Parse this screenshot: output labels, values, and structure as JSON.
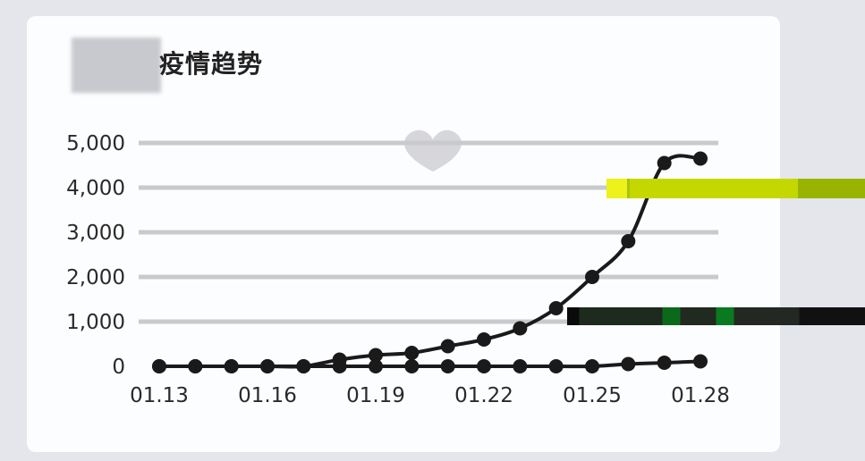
{
  "title": "疫情趋势",
  "colors": {
    "line": "#1a1a1a",
    "grid": "#c9cacd",
    "card": "#fcfdff",
    "background": "#e4e6ec"
  },
  "chart_data": {
    "type": "line",
    "title": "疫情趋势",
    "xlabel": "",
    "ylabel": "",
    "ylim": [
      0,
      5000
    ],
    "yticks": [
      "5,000",
      "4,000",
      "3,000",
      "2,000",
      "1,000",
      "0"
    ],
    "x": [
      "01.13",
      "01.14",
      "01.15",
      "01.16",
      "01.17",
      "01.18",
      "01.19",
      "01.20",
      "01.21",
      "01.22",
      "01.23",
      "01.24",
      "01.25",
      "01.26",
      "01.27",
      "01.28"
    ],
    "xtick_labels": [
      "01.13",
      "01.16",
      "01.19",
      "01.22",
      "01.25",
      "01.28"
    ],
    "grid": true,
    "legend": "none",
    "series": [
      {
        "values": [
          0,
          0,
          0,
          0,
          0,
          150,
          250,
          300,
          450,
          600,
          850,
          1300,
          2000,
          2800,
          4550,
          4650
        ]
      },
      {
        "values": [
          0,
          0,
          0,
          0,
          0,
          0,
          0,
          0,
          0,
          0,
          0,
          0,
          0,
          50,
          80,
          110
        ]
      }
    ]
  }
}
